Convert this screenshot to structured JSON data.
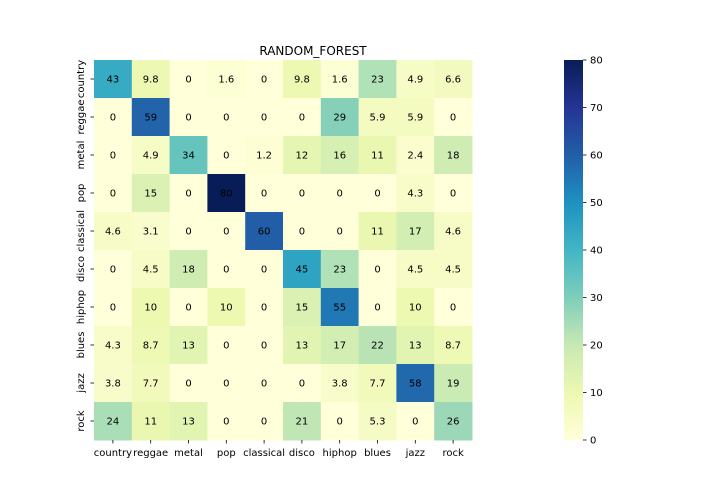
{
  "chart_data": {
    "type": "heatmap",
    "title": "RANDOM_FOREST",
    "xlabel": "",
    "ylabel": "",
    "x_categories": [
      "country",
      "reggae",
      "metal",
      "pop",
      "classical",
      "disco",
      "hiphop",
      "blues",
      "jazz",
      "rock"
    ],
    "y_categories": [
      "country",
      "reggae",
      "metal",
      "pop",
      "classical",
      "disco",
      "hiphop",
      "blues",
      "jazz",
      "rock"
    ],
    "values": [
      [
        "43",
        "9.8",
        "0",
        "1.6",
        "0",
        "9.8",
        "1.6",
        "23",
        "4.9",
        "6.6"
      ],
      [
        "0",
        "59",
        "0",
        "0",
        "0",
        "0",
        "29",
        "5.9",
        "5.9",
        "0"
      ],
      [
        "0",
        "4.9",
        "34",
        "0",
        "1.2",
        "12",
        "16",
        "11",
        "2.4",
        "18"
      ],
      [
        "0",
        "15",
        "0",
        "80",
        "0",
        "0",
        "0",
        "0",
        "4.3",
        "0"
      ],
      [
        "4.6",
        "3.1",
        "0",
        "0",
        "60",
        "0",
        "0",
        "11",
        "17",
        "4.6"
      ],
      [
        "0",
        "4.5",
        "18",
        "0",
        "0",
        "45",
        "23",
        "0",
        "4.5",
        "4.5"
      ],
      [
        "0",
        "10",
        "0",
        "10",
        "0",
        "15",
        "55",
        "0",
        "10",
        "0"
      ],
      [
        "4.3",
        "8.7",
        "13",
        "0",
        "0",
        "13",
        "17",
        "22",
        "13",
        "8.7"
      ],
      [
        "3.8",
        "7.7",
        "0",
        "0",
        "0",
        "0",
        "3.8",
        "7.7",
        "58",
        "19"
      ],
      [
        "24",
        "11",
        "13",
        "0",
        "0",
        "21",
        "0",
        "5.3",
        "0",
        "26"
      ]
    ],
    "colorbar": {
      "colormap": "YlGnBu",
      "min": 0,
      "max": 80,
      "ticks": [
        "0",
        "10",
        "20",
        "30",
        "40",
        "50",
        "60",
        "70",
        "80"
      ]
    },
    "grid": false,
    "legend": "colorbar-right"
  }
}
